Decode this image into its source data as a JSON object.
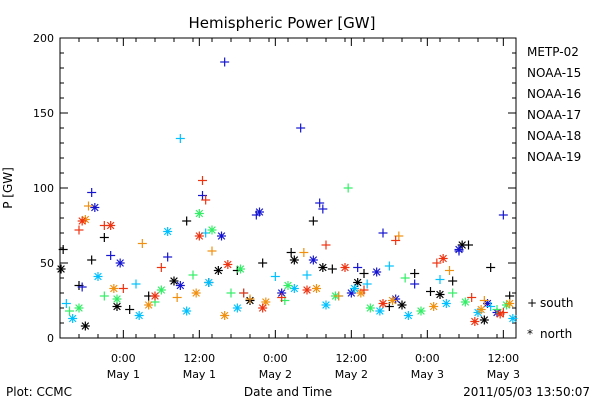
{
  "chart_data": {
    "type": "scatter",
    "title": "Hemispheric Power [GW]",
    "ylabel": "P [GW]",
    "xlabel": "Date and Time",
    "ylim": [
      0,
      200
    ],
    "yticks": [
      0,
      50,
      100,
      150,
      200
    ],
    "xlim": [
      "2011-04-30T14:00",
      "2011-05-03T14:00"
    ],
    "xticks": [
      {
        "time": "2011-05-01T00:00",
        "line1": "0:00",
        "line2": "May 1"
      },
      {
        "time": "2011-05-01T12:00",
        "line1": "12:00",
        "line2": "May 1"
      },
      {
        "time": "2011-05-02T00:00",
        "line1": "0:00",
        "line2": "May 2"
      },
      {
        "time": "2011-05-02T12:00",
        "line1": "12:00",
        "line2": "May 2"
      },
      {
        "time": "2011-05-03T00:00",
        "line1": "0:00",
        "line2": "May 3"
      },
      {
        "time": "2011-05-03T12:00",
        "line1": "12:00",
        "line2": "May 3"
      }
    ],
    "legend_position": "right",
    "marker_legend": [
      {
        "symbol": "+",
        "label": "south"
      },
      {
        "symbol": "*",
        "label": "north"
      }
    ],
    "series": [
      {
        "name": "METP-02",
        "color": "#000000",
        "south": [
          [
            "2011-04-30T14:30",
            59
          ],
          [
            "2011-04-30T17:00",
            35
          ],
          [
            "2011-04-30T19:00",
            52
          ],
          [
            "2011-04-30T21:00",
            67
          ],
          [
            "2011-05-01T01:00",
            19
          ],
          [
            "2011-05-01T04:00",
            28
          ],
          [
            "2011-05-01T10:00",
            78
          ],
          [
            "2011-05-01T13:30",
            37
          ],
          [
            "2011-05-01T18:00",
            45
          ],
          [
            "2011-05-01T22:00",
            50
          ],
          [
            "2011-05-02T02:30",
            57
          ],
          [
            "2011-05-02T06:00",
            78
          ],
          [
            "2011-05-02T09:00",
            46
          ],
          [
            "2011-05-02T14:00",
            43
          ],
          [
            "2011-05-02T18:00",
            21
          ],
          [
            "2011-05-02T22:00",
            43
          ],
          [
            "2011-05-03T00:30",
            31
          ],
          [
            "2011-05-03T04:00",
            38
          ],
          [
            "2011-05-03T06:30",
            62
          ],
          [
            "2011-05-03T10:00",
            47
          ],
          [
            "2011-05-03T13:00",
            28
          ]
        ],
        "north": [
          [
            "2011-04-30T14:10",
            46
          ],
          [
            "2011-04-30T18:00",
            8
          ],
          [
            "2011-04-30T23:00",
            21
          ],
          [
            "2011-05-01T08:00",
            38
          ],
          [
            "2011-05-01T15:00",
            45
          ],
          [
            "2011-05-01T20:00",
            25
          ],
          [
            "2011-05-02T03:00",
            52
          ],
          [
            "2011-05-02T07:30",
            47
          ],
          [
            "2011-05-02T13:00",
            37
          ],
          [
            "2011-05-02T20:00",
            22
          ],
          [
            "2011-05-03T02:00",
            29
          ],
          [
            "2011-05-03T05:30",
            62
          ],
          [
            "2011-05-03T09:00",
            12
          ]
        ]
      },
      {
        "name": "NOAA-15",
        "color": "#1515d0",
        "south": [
          [
            "2011-04-30T19:00",
            97
          ],
          [
            "2011-04-30T17:30",
            34
          ],
          [
            "2011-04-30T22:00",
            55
          ],
          [
            "2011-05-01T07:00",
            54
          ],
          [
            "2011-05-01T12:30",
            95
          ],
          [
            "2011-05-01T16:00",
            184
          ],
          [
            "2011-05-01T21:00",
            82
          ],
          [
            "2011-05-02T04:00",
            140
          ],
          [
            "2011-05-02T07:00",
            90
          ],
          [
            "2011-05-02T07:30",
            86
          ],
          [
            "2011-05-02T13:00",
            47
          ],
          [
            "2011-05-02T17:00",
            70
          ],
          [
            "2011-05-02T22:00",
            36
          ],
          [
            "2011-05-03T05:00",
            58
          ],
          [
            "2011-05-03T12:00",
            82
          ]
        ],
        "north": [
          [
            "2011-04-30T19:30",
            87
          ],
          [
            "2011-04-30T23:30",
            50
          ],
          [
            "2011-05-01T09:00",
            35
          ],
          [
            "2011-05-01T15:30",
            68
          ],
          [
            "2011-05-01T21:30",
            84
          ],
          [
            "2011-05-02T01:00",
            30
          ],
          [
            "2011-05-02T06:00",
            52
          ],
          [
            "2011-05-02T12:00",
            30
          ],
          [
            "2011-05-02T16:00",
            44
          ],
          [
            "2011-05-02T19:00",
            26
          ],
          [
            "2011-05-03T05:00",
            59
          ],
          [
            "2011-05-03T09:30",
            23
          ],
          [
            "2011-05-03T11:00",
            17
          ]
        ]
      },
      {
        "name": "NOAA-16",
        "color": "#00c0ff",
        "south": [
          [
            "2011-04-30T15:00",
            23
          ],
          [
            "2011-05-01T02:00",
            36
          ],
          [
            "2011-05-01T09:00",
            133
          ],
          [
            "2011-05-01T13:00",
            70
          ],
          [
            "2011-05-01T19:00",
            30
          ],
          [
            "2011-05-02T00:00",
            41
          ],
          [
            "2011-05-02T05:00",
            42
          ],
          [
            "2011-05-02T10:00",
            28
          ],
          [
            "2011-05-02T14:30",
            36
          ],
          [
            "2011-05-02T18:00",
            48
          ],
          [
            "2011-05-03T02:00",
            39
          ],
          [
            "2011-05-03T10:00",
            21
          ]
        ],
        "north": [
          [
            "2011-04-30T16:00",
            13
          ],
          [
            "2011-04-30T20:00",
            41
          ],
          [
            "2011-05-01T02:30",
            15
          ],
          [
            "2011-05-01T07:00",
            71
          ],
          [
            "2011-05-01T10:00",
            18
          ],
          [
            "2011-05-01T13:30",
            37
          ],
          [
            "2011-05-01T18:00",
            20
          ],
          [
            "2011-05-02T03:00",
            33
          ],
          [
            "2011-05-02T08:00",
            22
          ],
          [
            "2011-05-02T12:30",
            33
          ],
          [
            "2011-05-02T16:30",
            18
          ],
          [
            "2011-05-02T21:00",
            15
          ],
          [
            "2011-05-03T03:00",
            23
          ],
          [
            "2011-05-03T08:00",
            17
          ],
          [
            "2011-05-03T13:30",
            13
          ]
        ]
      },
      {
        "name": "NOAA-17",
        "color": "#33ee66",
        "south": [
          [
            "2011-04-30T15:30",
            18
          ],
          [
            "2011-04-30T21:00",
            28
          ],
          [
            "2011-05-01T05:00",
            24
          ],
          [
            "2011-05-01T11:00",
            42
          ],
          [
            "2011-05-01T17:00",
            30
          ],
          [
            "2011-05-02T01:30",
            25
          ],
          [
            "2011-05-02T11:30",
            100
          ],
          [
            "2011-05-02T20:30",
            40
          ],
          [
            "2011-05-03T04:00",
            30
          ],
          [
            "2011-05-03T11:00",
            19
          ]
        ],
        "north": [
          [
            "2011-04-30T17:00",
            20
          ],
          [
            "2011-04-30T23:00",
            26
          ],
          [
            "2011-05-01T06:00",
            32
          ],
          [
            "2011-05-01T12:00",
            83
          ],
          [
            "2011-05-01T14:00",
            72
          ],
          [
            "2011-05-01T18:30",
            46
          ],
          [
            "2011-05-02T02:00",
            35
          ],
          [
            "2011-05-02T09:30",
            28
          ],
          [
            "2011-05-02T15:00",
            20
          ],
          [
            "2011-05-02T23:00",
            18
          ],
          [
            "2011-05-03T06:00",
            24
          ],
          [
            "2011-05-03T12:30",
            22
          ]
        ]
      },
      {
        "name": "NOAA-18",
        "color": "#f09010",
        "south": [
          [
            "2011-04-30T18:30",
            88
          ],
          [
            "2011-05-01T03:00",
            63
          ],
          [
            "2011-05-01T08:30",
            27
          ],
          [
            "2011-05-01T14:00",
            58
          ],
          [
            "2011-05-01T20:00",
            26
          ],
          [
            "2011-05-02T04:30",
            57
          ],
          [
            "2011-05-02T10:00",
            28
          ],
          [
            "2011-05-02T19:30",
            68
          ],
          [
            "2011-05-03T03:30",
            45
          ],
          [
            "2011-05-03T09:00",
            25
          ]
        ],
        "north": [
          [
            "2011-04-30T18:00",
            79
          ],
          [
            "2011-04-30T22:30",
            33
          ],
          [
            "2011-05-01T04:00",
            22
          ],
          [
            "2011-05-01T11:30",
            30
          ],
          [
            "2011-05-01T16:00",
            15
          ],
          [
            "2011-05-01T22:30",
            24
          ],
          [
            "2011-05-02T06:30",
            33
          ],
          [
            "2011-05-02T13:30",
            30
          ],
          [
            "2011-05-02T18:30",
            25
          ],
          [
            "2011-05-03T01:00",
            21
          ],
          [
            "2011-05-03T08:30",
            19
          ],
          [
            "2011-05-03T13:00",
            23
          ]
        ]
      },
      {
        "name": "NOAA-19",
        "color": "#ee3311",
        "south": [
          [
            "2011-04-30T17:00",
            72
          ],
          [
            "2011-04-30T21:00",
            75
          ],
          [
            "2011-05-01T00:00",
            33
          ],
          [
            "2011-05-01T06:00",
            47
          ],
          [
            "2011-05-01T12:30",
            105
          ],
          [
            "2011-05-01T13:00",
            92
          ],
          [
            "2011-05-01T19:00",
            30
          ],
          [
            "2011-05-02T01:00",
            27
          ],
          [
            "2011-05-02T08:00",
            62
          ],
          [
            "2011-05-02T14:00",
            32
          ],
          [
            "2011-05-02T19:00",
            65
          ],
          [
            "2011-05-03T01:30",
            50
          ],
          [
            "2011-05-03T07:00",
            27
          ],
          [
            "2011-05-03T12:00",
            17
          ]
        ],
        "north": [
          [
            "2011-04-30T17:30",
            78
          ],
          [
            "2011-04-30T22:00",
            75
          ],
          [
            "2011-05-01T05:00",
            28
          ],
          [
            "2011-05-01T12:00",
            68
          ],
          [
            "2011-05-01T16:30",
            49
          ],
          [
            "2011-05-01T22:00",
            20
          ],
          [
            "2011-05-02T05:00",
            32
          ],
          [
            "2011-05-02T11:00",
            47
          ],
          [
            "2011-05-02T17:00",
            23
          ],
          [
            "2011-05-03T02:30",
            53
          ],
          [
            "2011-05-03T07:30",
            11
          ],
          [
            "2011-05-03T11:30",
            16
          ]
        ]
      }
    ]
  },
  "footer": {
    "plot_source": "Plot: CCMC",
    "timestamp": "2011/05/03  13:50:07"
  }
}
